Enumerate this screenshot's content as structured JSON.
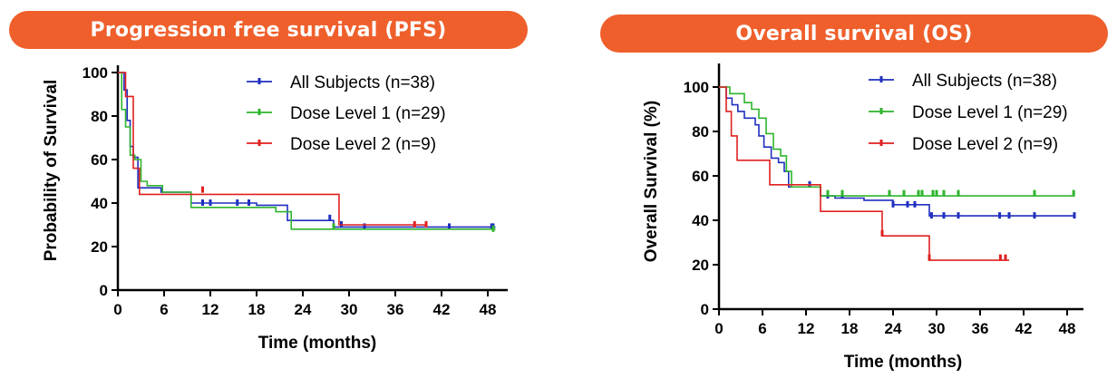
{
  "colors": {
    "banner": "#ef5f2b",
    "all": "#1f2fbf",
    "dose1": "#2db52d",
    "dose2": "#e02020"
  },
  "chart_data": [
    {
      "type": "line",
      "subtype": "kaplan-meier",
      "title": "Progression free survival (PFS)",
      "xlabel": "Time (months)",
      "ylabel": "Probability of Survival",
      "xlim": [
        0,
        50
      ],
      "ylim": [
        0,
        105
      ],
      "xticks": [
        "0",
        "6",
        "12",
        "18",
        "24",
        "30",
        "36",
        "42",
        "48"
      ],
      "yticks": [
        "0",
        "20",
        "40",
        "60",
        "80",
        "100"
      ],
      "legend_position": "top-right",
      "series": [
        {
          "name": "All Subjects (n=38)",
          "color": "#1f2fbf",
          "steps": [
            [
              0,
              100
            ],
            [
              0.8,
              92
            ],
            [
              1.2,
              78
            ],
            [
              1.6,
              66
            ],
            [
              2,
              61
            ],
            [
              2.6,
              47
            ],
            [
              4,
              47
            ],
            [
              5.6,
              45
            ],
            [
              9.5,
              40
            ],
            [
              17,
              40
            ],
            [
              18,
              39
            ],
            [
              22,
              32
            ],
            [
              28,
              29
            ],
            [
              49,
              29
            ]
          ],
          "censors": [
            [
              11,
              40
            ],
            [
              12,
              40
            ],
            [
              15.5,
              40
            ],
            [
              17,
              40
            ],
            [
              27.5,
              33
            ],
            [
              29,
              30
            ],
            [
              32,
              29
            ],
            [
              43,
              29
            ],
            [
              48.5,
              29
            ],
            [
              48.7,
              29
            ]
          ]
        },
        {
          "name": "Dose Level 1 (n=29)",
          "color": "#2db52d",
          "steps": [
            [
              0,
              100
            ],
            [
              0.5,
              83
            ],
            [
              1,
              75
            ],
            [
              1.6,
              62
            ],
            [
              2.2,
              60
            ],
            [
              3,
              50
            ],
            [
              3.8,
              48
            ],
            [
              5.8,
              45
            ],
            [
              9.5,
              38
            ],
            [
              20.5,
              36
            ],
            [
              22.5,
              28
            ],
            [
              49,
              28
            ]
          ],
          "censors": [
            [
              28,
              29
            ],
            [
              48.7,
              28
            ]
          ]
        },
        {
          "name": "Dose Level 2 (n=9)",
          "color": "#e02020",
          "steps": [
            [
              0,
              100
            ],
            [
              1,
              89
            ],
            [
              2,
              56
            ],
            [
              2.8,
              44
            ],
            [
              11,
              44
            ],
            [
              28.7,
              44
            ],
            [
              28.7,
              30
            ],
            [
              40,
              30
            ]
          ],
          "censors": [
            [
              11,
              46
            ],
            [
              38.5,
              30
            ],
            [
              40,
              30
            ]
          ]
        }
      ]
    },
    {
      "type": "line",
      "subtype": "kaplan-meier",
      "title": "Overall survival (OS)",
      "xlabel": "Time (months)",
      "ylabel": "Overall Survival (%)",
      "xlim": [
        0,
        50
      ],
      "ylim": [
        0,
        110
      ],
      "xticks": [
        "0",
        "6",
        "12",
        "18",
        "24",
        "30",
        "36",
        "42",
        "48"
      ],
      "yticks": [
        "0",
        "20",
        "40",
        "60",
        "80",
        "100"
      ],
      "legend_position": "top-right",
      "series": [
        {
          "name": "All Subjects (n=38)",
          "color": "#1f2fbf",
          "steps": [
            [
              0,
              100
            ],
            [
              1,
              95
            ],
            [
              1.8,
              92
            ],
            [
              2.6,
              89
            ],
            [
              3.5,
              86
            ],
            [
              5,
              83
            ],
            [
              5.5,
              78
            ],
            [
              6.2,
              73
            ],
            [
              7.2,
              68
            ],
            [
              8.2,
              66
            ],
            [
              9,
              62
            ],
            [
              9.6,
              55
            ],
            [
              14,
              51
            ],
            [
              16,
              50
            ],
            [
              20,
              49
            ],
            [
              24,
              47
            ],
            [
              29,
              42
            ],
            [
              49,
              42
            ]
          ],
          "censors": [
            [
              12.5,
              56
            ],
            [
              15,
              51
            ],
            [
              17,
              51
            ],
            [
              24,
              47
            ],
            [
              26,
              47
            ],
            [
              27,
              47
            ],
            [
              29.3,
              42
            ],
            [
              31,
              42
            ],
            [
              33,
              42
            ],
            [
              38.7,
              42
            ],
            [
              40,
              42
            ],
            [
              43.5,
              42
            ],
            [
              49,
              42
            ]
          ]
        },
        {
          "name": "Dose Level 1 (n=29)",
          "color": "#2db52d",
          "steps": [
            [
              0,
              100
            ],
            [
              1.5,
              97
            ],
            [
              3.5,
              93
            ],
            [
              4.5,
              90
            ],
            [
              5.5,
              86
            ],
            [
              6.5,
              79
            ],
            [
              7.5,
              72
            ],
            [
              8.5,
              69
            ],
            [
              9.3,
              62
            ],
            [
              10,
              55
            ],
            [
              14,
              51
            ],
            [
              49,
              51
            ]
          ],
          "censors": [
            [
              15,
              52
            ],
            [
              17,
              52
            ],
            [
              23.5,
              52
            ],
            [
              25.5,
              52
            ],
            [
              27.5,
              52
            ],
            [
              28,
              52
            ],
            [
              29.5,
              52
            ],
            [
              30,
              52
            ],
            [
              31,
              52
            ],
            [
              33,
              52
            ],
            [
              43.5,
              52
            ],
            [
              48.9,
              52
            ]
          ]
        },
        {
          "name": "Dose Level 2 (n=9)",
          "color": "#e02020",
          "steps": [
            [
              0,
              100
            ],
            [
              1,
              89
            ],
            [
              1.7,
              78
            ],
            [
              2.5,
              67
            ],
            [
              7,
              56
            ],
            [
              14,
              44
            ],
            [
              22.5,
              33
            ],
            [
              29,
              22
            ],
            [
              40,
              22
            ]
          ],
          "censors": [
            [
              22.5,
              34
            ],
            [
              29,
              23
            ],
            [
              38.8,
              23
            ],
            [
              39.5,
              23
            ]
          ]
        }
      ]
    }
  ]
}
